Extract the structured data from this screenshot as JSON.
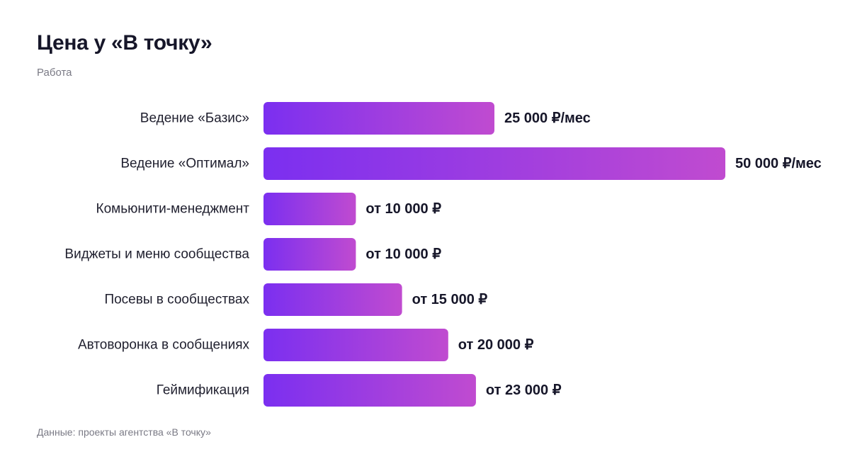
{
  "title": "Цена у «В точку»",
  "subtitle": "Работа",
  "footer": "Данные: проекты агентства «В точку»",
  "colors": {
    "bar_start": "#7b2ff0",
    "bar_end": "#c04bd0",
    "text": "#161629",
    "muted": "#7a7a85"
  },
  "chart_data": {
    "type": "bar",
    "orientation": "horizontal",
    "categories": [
      "Ведение «Базис»",
      "Ведение «Оптимал»",
      "Комьюнити-менеджмент",
      "Виджеты и меню сообщества",
      "Посевы в сообществах",
      "Автоворонка в сообщениях",
      "Геймификация"
    ],
    "values": [
      25000,
      50000,
      10000,
      10000,
      15000,
      20000,
      23000
    ],
    "value_labels": [
      "25 000 ₽/мес",
      "50 000 ₽/мес",
      "от 10 000 ₽",
      "от 10 000 ₽",
      "от 15 000 ₽",
      "от 20 000 ₽",
      "от 23 000 ₽"
    ],
    "xlim": [
      0,
      50000
    ],
    "grid": false,
    "legend": "none"
  }
}
